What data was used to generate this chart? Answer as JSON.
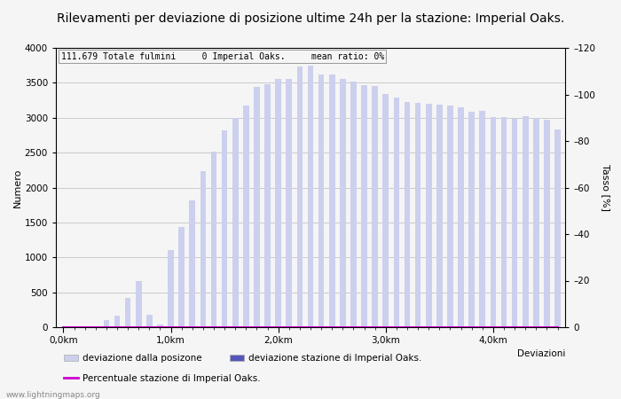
{
  "title": "Rilevamenti per deviazione di posizione ultime 24h per la stazione: Imperial Oaks.",
  "subtitle": "111.679 Totale fulmini     0 Imperial Oaks.     mean ratio: 0%",
  "xlabel": "Deviazioni",
  "ylabel_left": "Numero",
  "ylabel_right": "Tasso [%]",
  "background_color": "#f5f5f5",
  "bar_color_light": "#ccd0ee",
  "bar_color_dark": "#5555bb",
  "line_color": "#cc00cc",
  "grid_color": "#bbbbbb",
  "title_fontsize": 10,
  "tick_fontsize": 7.5,
  "legend_fontsize": 7.5,
  "ylim_left": [
    0,
    4000
  ],
  "ylim_right": [
    0,
    120
  ],
  "bar_values": [
    0,
    0,
    15,
    0,
    100,
    170,
    420,
    660,
    180,
    40,
    1100,
    1430,
    1820,
    2240,
    2510,
    2820,
    3000,
    3170,
    3440,
    3480,
    3550,
    3560,
    3730,
    3740,
    3620,
    3620,
    3560,
    3520,
    3470,
    3450,
    3340,
    3290,
    3220,
    3210,
    3200,
    3190,
    3170,
    3150,
    3090,
    3100,
    3010,
    3010,
    2990,
    3020,
    3000,
    2970,
    2830
  ],
  "station_values": [
    0,
    0,
    0,
    0,
    0,
    0,
    0,
    0,
    0,
    0,
    0,
    0,
    0,
    0,
    0,
    0,
    0,
    0,
    0,
    0,
    0,
    0,
    0,
    0,
    0,
    0,
    0,
    0,
    0,
    0,
    0,
    0,
    0,
    0,
    0,
    0,
    0,
    0,
    0,
    0,
    0,
    0,
    0,
    0,
    0,
    0,
    0
  ],
  "percent_values": [
    0,
    0,
    0,
    0,
    0,
    0,
    0,
    0,
    0,
    0,
    0,
    0,
    0,
    0,
    0,
    0,
    0,
    0,
    0,
    0,
    0,
    0,
    0,
    0,
    0,
    0,
    0,
    0,
    0,
    0,
    0,
    0,
    0,
    0,
    0,
    0,
    0,
    0,
    0,
    0,
    0,
    0,
    0,
    0,
    0,
    0,
    0
  ],
  "km_positions": [
    0,
    10,
    20,
    30,
    40
  ],
  "km_labels": [
    "0,0km",
    "1,0km",
    "2,0km",
    "3,0km",
    "4,0km"
  ],
  "legend_label1": "deviazione dalla posizone",
  "legend_label2": "deviazione stazione di Imperial Oaks.",
  "legend_label3": "Percentuale stazione di Imperial Oaks.",
  "watermark": "www.lightningmaps.org"
}
